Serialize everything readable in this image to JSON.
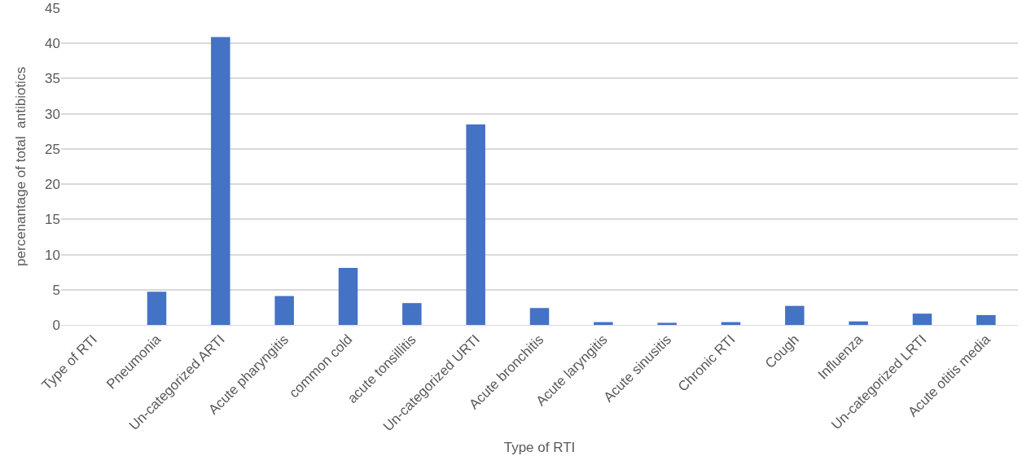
{
  "chart_data": {
    "type": "bar",
    "xlabel": "Type of RTI",
    "ylabel": "percenantage of total  antibiotics",
    "categories": [
      "Type of RTI",
      "Pneumonia",
      "Un-categorized ARTI",
      "Acute pharyngitis",
      "common cold",
      "acute tonsillitis",
      "Un-categorized URTI",
      "Acute bronchitis",
      "Acute laryngitis",
      "Acute sinusitis",
      "Chronic RTI",
      "Cough",
      "Influenza",
      "Un-categorized LRTI",
      "Acute otitis media"
    ],
    "values": [
      0,
      4.7,
      40.9,
      4.1,
      8.1,
      3.1,
      28.5,
      2.4,
      0.4,
      0.3,
      0.4,
      2.7,
      0.5,
      1.6,
      1.4
    ],
    "color": "#4472c4",
    "ylim": [
      0,
      45
    ],
    "yticks": [
      0,
      5,
      10,
      15,
      20,
      25,
      30,
      35,
      40,
      45
    ],
    "grid": "y"
  }
}
